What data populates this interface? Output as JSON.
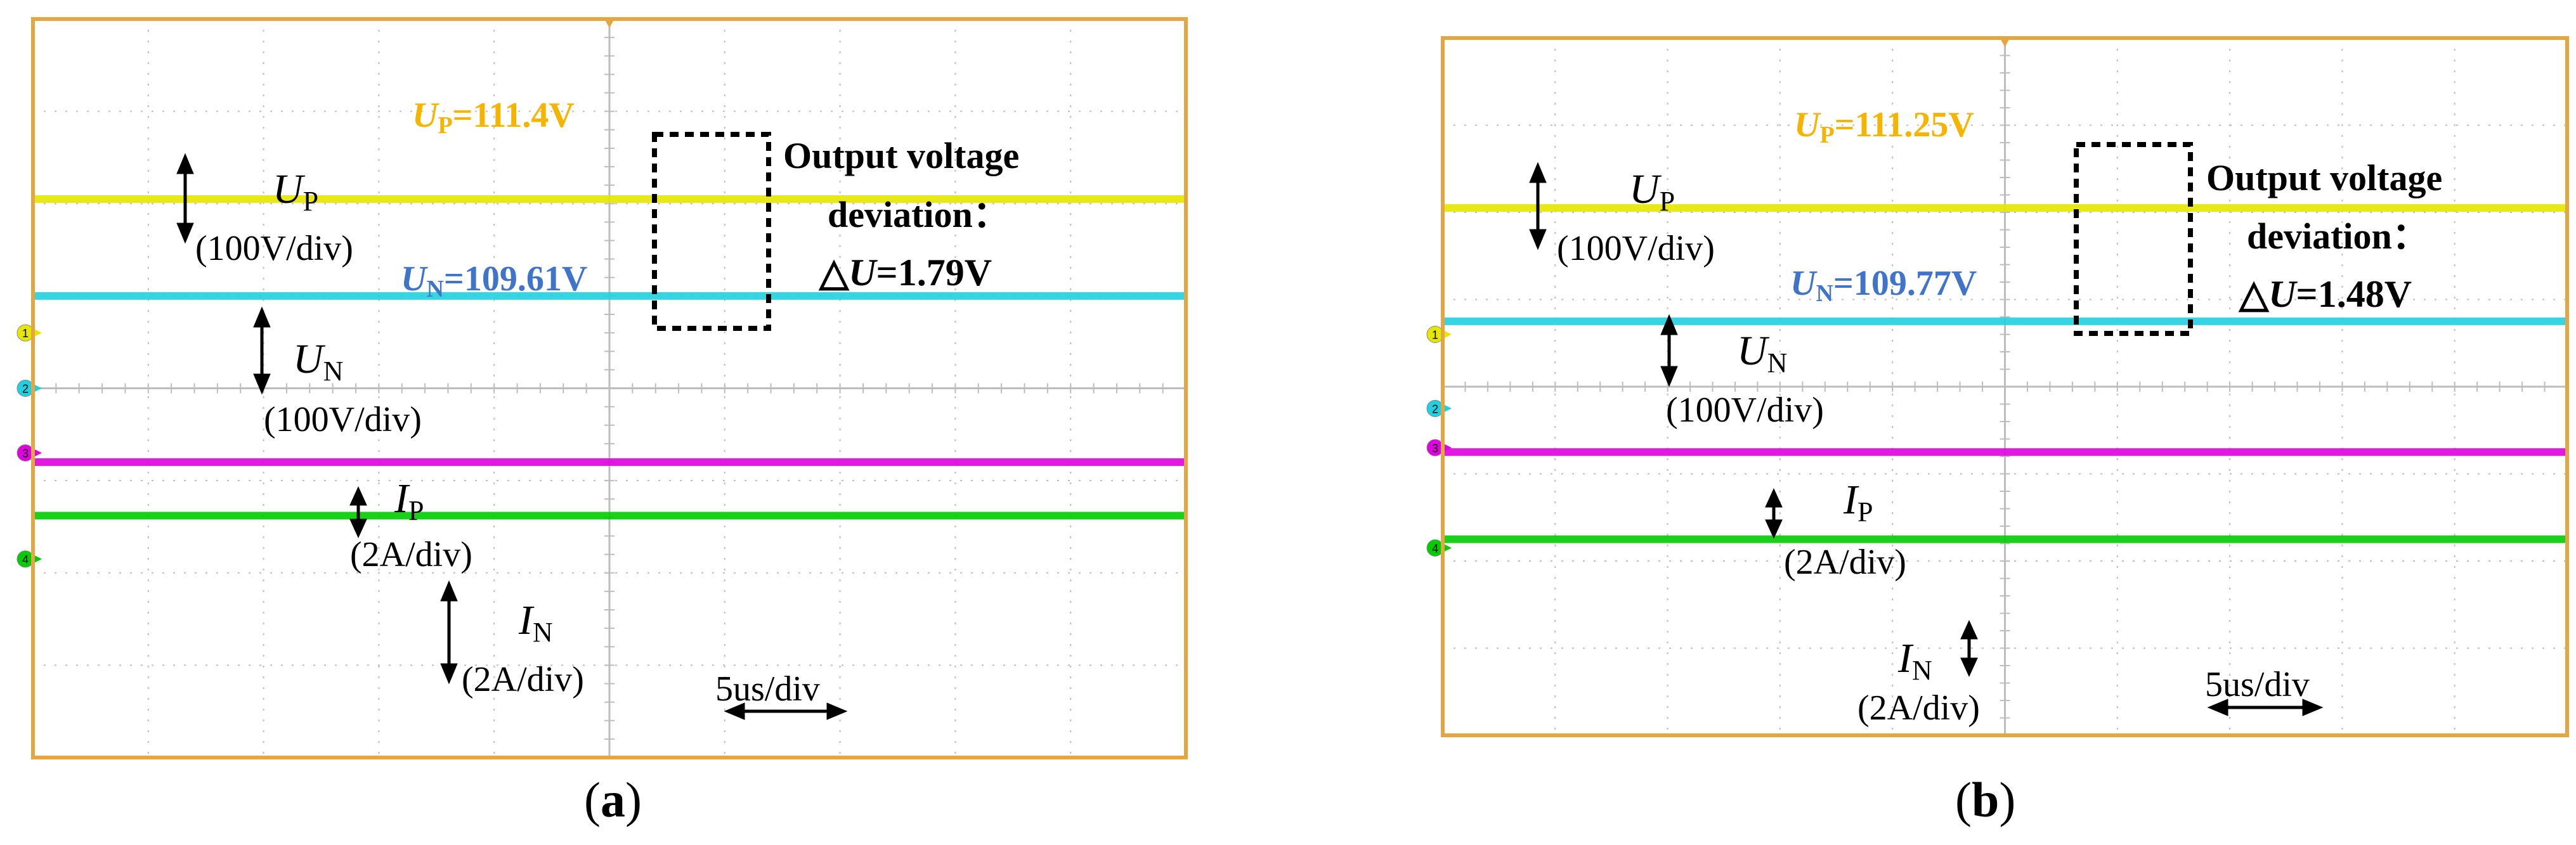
{
  "chart_data": [
    {
      "type": "line",
      "panel_label": "a",
      "timebase": "5us/div",
      "series": [
        {
          "name": "U",
          "sub": "P",
          "scale": "(100V/div)",
          "level_div": 2.05,
          "color": "#e6e600",
          "readout_prefix": "U",
          "readout_sub": "P",
          "readout_value": "=111.4V",
          "readout_color": "#f5b400"
        },
        {
          "name": "U",
          "sub": "N",
          "scale": "(100V/div)",
          "level_div": 1.0,
          "color": "#1fd0e0",
          "readout_prefix": "U",
          "readout_sub": "N",
          "readout_value": "=109.61V",
          "readout_color": "#3f74c8"
        },
        {
          "name": "I",
          "sub": "P",
          "scale": "(2A/div)",
          "level_div": -0.8,
          "color": "#e000e0"
        },
        {
          "name": "I",
          "sub": "N",
          "scale": "(2A/div)",
          "level_div": -1.38,
          "color": "#00cc00"
        }
      ],
      "channel_markers": [
        "1",
        "2",
        "3",
        "4"
      ],
      "annotation": {
        "line1": "Output voltage",
        "line2": "deviation：",
        "delta": "△",
        "U": "U",
        "value": "=1.79V"
      }
    },
    {
      "type": "line",
      "panel_label": "b",
      "timebase": "5us/div",
      "series": [
        {
          "name": "U",
          "sub": "P",
          "scale": "(100V/div)",
          "level_div": 2.05,
          "color": "#e6e600",
          "readout_prefix": "U",
          "readout_sub": "P",
          "readout_value": "=111.25V",
          "readout_color": "#f5b400"
        },
        {
          "name": "U",
          "sub": "N",
          "scale": "(100V/div)",
          "level_div": 0.75,
          "color": "#1fd0e0",
          "readout_prefix": "U",
          "readout_sub": "N",
          "readout_value": "=109.77V",
          "readout_color": "#3f74c8"
        },
        {
          "name": "I",
          "sub": "P",
          "scale": "(2A/div)",
          "level_div": -0.75,
          "color": "#e000e0"
        },
        {
          "name": "I",
          "sub": "N",
          "scale": "(2A/div)",
          "level_div": -1.75,
          "color": "#00cc00"
        }
      ],
      "channel_markers": [
        "1",
        "2",
        "3",
        "4"
      ],
      "annotation": {
        "line1": "Output voltage",
        "line2": "deviation：",
        "delta": "△",
        "U": "U",
        "value": "=1.48V"
      }
    }
  ],
  "colors": {
    "frame": "#e3a640",
    "grid": "#bdbdbd",
    "channel_label_ink": "#000000"
  }
}
